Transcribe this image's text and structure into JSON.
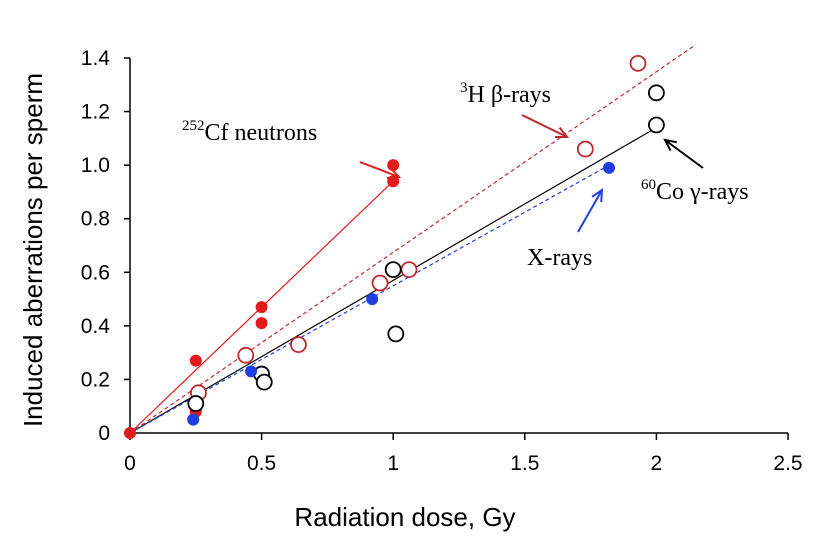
{
  "chart_data": {
    "type": "scatter",
    "xlabel": "Radiation dose, Gy",
    "ylabel": "Induced aberrations per sperm",
    "xlim": [
      0,
      2.5
    ],
    "ylim": [
      0,
      1.4
    ],
    "x_ticks": [
      "0",
      "0.5",
      "1",
      "1.5",
      "2",
      "2.5"
    ],
    "y_ticks": [
      "0",
      "0.2",
      "0.4",
      "0.6",
      "0.8",
      "1.0",
      "1.2",
      "1.4"
    ],
    "grid": false,
    "series": [
      {
        "name_prefix": "252",
        "name_main": "Cf  neutrons",
        "color": "#e31a1c",
        "marker": "filled-circle",
        "line": "solid",
        "fit": [
          [
            0,
            0.0
          ],
          [
            1.0,
            0.94
          ]
        ],
        "points": [
          [
            0,
            0.0
          ],
          [
            0.25,
            0.27
          ],
          [
            0.25,
            0.08
          ],
          [
            0.5,
            0.47
          ],
          [
            0.5,
            0.41
          ],
          [
            1.0,
            1.0
          ],
          [
            1.0,
            0.94
          ]
        ]
      },
      {
        "name_prefix": "3",
        "name_main": "H β-rays",
        "color": "#c0282d",
        "marker": "open-circle",
        "line": "dashed",
        "fit": [
          [
            0,
            0.0
          ],
          [
            2.15,
            1.45
          ]
        ],
        "points": [
          [
            0.26,
            0.15
          ],
          [
            0.44,
            0.29
          ],
          [
            0.64,
            0.33
          ],
          [
            0.95,
            0.56
          ],
          [
            1.06,
            0.61
          ],
          [
            1.73,
            1.06
          ],
          [
            1.93,
            1.38
          ]
        ]
      },
      {
        "name_prefix": "60",
        "name_main": "Co γ-rays",
        "color": "#000000",
        "marker": "open-circle",
        "line": "solid",
        "fit": [
          [
            0,
            0.0
          ],
          [
            2.0,
            1.14
          ]
        ],
        "points": [
          [
            0.25,
            0.11
          ],
          [
            0.5,
            0.22
          ],
          [
            0.51,
            0.19
          ],
          [
            1.0,
            0.61
          ],
          [
            1.01,
            0.37
          ],
          [
            2.0,
            1.15
          ],
          [
            2.0,
            1.27
          ]
        ]
      },
      {
        "name_prefix": "",
        "name_main": "X-rays",
        "color": "#1f3fe0",
        "marker": "filled-circle",
        "line": "dashed",
        "fit": [
          [
            0,
            0.0
          ],
          [
            1.82,
            1.0
          ]
        ],
        "points": [
          [
            0.24,
            0.05
          ],
          [
            0.46,
            0.23
          ],
          [
            0.92,
            0.5
          ],
          [
            1.82,
            0.99
          ]
        ]
      }
    ]
  }
}
